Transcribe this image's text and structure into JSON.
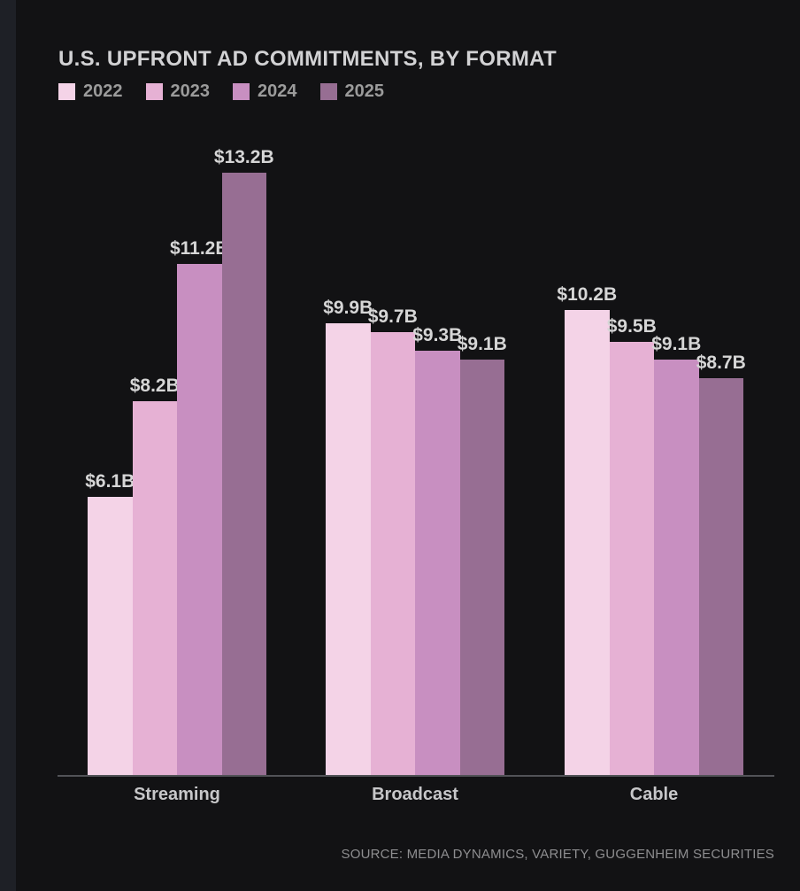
{
  "page": {
    "background_color": "#121214",
    "left_strip_color": "#1e2026",
    "axis_line_color": "#515257"
  },
  "header": {
    "title": "U.S. UPFRONT AD COMMITMENTS, BY FORMAT"
  },
  "legend": {
    "position": "top-left",
    "items": [
      {
        "label": "2022",
        "color": "#f4d3e7"
      },
      {
        "label": "2023",
        "color": "#e6b1d4"
      },
      {
        "label": "2024",
        "color": "#c88fc1"
      },
      {
        "label": "2025",
        "color": "#976e93"
      }
    ]
  },
  "chart_data": {
    "type": "bar",
    "title": "U.S. UPFRONT AD COMMITMENTS, BY FORMAT",
    "categories": [
      "Streaming",
      "Broadcast",
      "Cable"
    ],
    "series": [
      {
        "name": "2022",
        "color": "#f4d3e7",
        "values": [
          6.1,
          9.9,
          10.2
        ]
      },
      {
        "name": "2023",
        "color": "#e6b1d4",
        "values": [
          8.2,
          9.7,
          9.5
        ]
      },
      {
        "name": "2024",
        "color": "#c88fc1",
        "values": [
          11.2,
          9.3,
          9.1
        ]
      },
      {
        "name": "2025",
        "color": "#976e93",
        "values": [
          13.2,
          9.1,
          8.7
        ]
      }
    ],
    "value_labels": [
      [
        "$6.1B",
        "$9.9B",
        "$10.2B"
      ],
      [
        "$8.2B",
        "$9.7B",
        "$9.5B"
      ],
      [
        "$11.2B",
        "$9.3B",
        "$9.1B"
      ],
      [
        "$13.2B",
        "$9.1B",
        "$8.7B"
      ]
    ],
    "value_prefix": "$",
    "value_suffix": "B",
    "unit": "billions USD",
    "ylim": [
      0,
      14.1
    ],
    "grid": false,
    "xlabel": "",
    "ylabel": "",
    "legend_position": "top-left"
  },
  "footer": {
    "source": "SOURCE: MEDIA DYNAMICS, VARIETY, GUGGENHEIM SECURITIES"
  }
}
